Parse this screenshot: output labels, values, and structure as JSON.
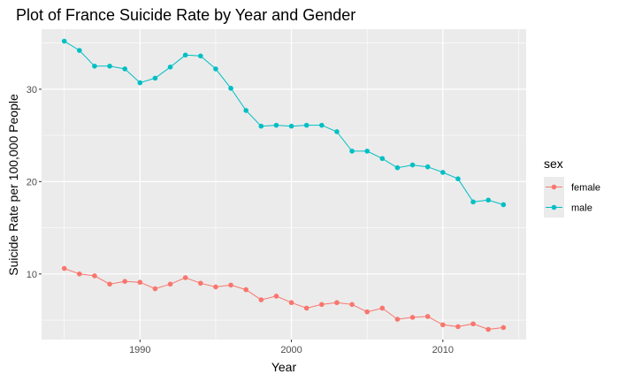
{
  "chart_data": {
    "type": "line",
    "title": "Plot of France Suicide Rate by Year and Gender",
    "xlabel": "Year",
    "ylabel": "Suicide Rate per 100,000 People",
    "xlim": [
      1983.5,
      2015.5
    ],
    "ylim": [
      2.9,
      36.5
    ],
    "xticks": [
      1990,
      2000,
      2010
    ],
    "yticks": [
      10,
      20,
      30
    ],
    "grid": true,
    "legend": {
      "title": "sex",
      "position": "right"
    },
    "x": [
      1985,
      1986,
      1987,
      1988,
      1989,
      1990,
      1991,
      1992,
      1993,
      1994,
      1995,
      1996,
      1997,
      1998,
      1999,
      2000,
      2001,
      2002,
      2003,
      2004,
      2005,
      2006,
      2007,
      2008,
      2009,
      2010,
      2011,
      2012,
      2013,
      2014
    ],
    "series": [
      {
        "name": "female",
        "color": "#f8766d",
        "values": [
          10.6,
          10.0,
          9.8,
          8.9,
          9.2,
          9.1,
          8.4,
          8.9,
          9.6,
          9.0,
          8.6,
          8.8,
          8.3,
          7.2,
          7.6,
          6.9,
          6.3,
          6.7,
          6.9,
          6.7,
          5.9,
          6.3,
          5.1,
          5.3,
          5.4,
          4.5,
          4.3,
          4.6,
          4.0,
          4.2
        ]
      },
      {
        "name": "male",
        "color": "#00bfc4",
        "values": [
          35.2,
          34.2,
          32.5,
          32.5,
          32.2,
          30.7,
          31.2,
          32.4,
          33.7,
          33.6,
          32.2,
          30.1,
          27.7,
          26.0,
          26.1,
          26.0,
          26.1,
          26.1,
          25.4,
          23.3,
          23.3,
          22.5,
          21.5,
          21.8,
          21.6,
          21.0,
          20.3,
          17.8,
          18.0,
          17.5
        ]
      }
    ]
  }
}
